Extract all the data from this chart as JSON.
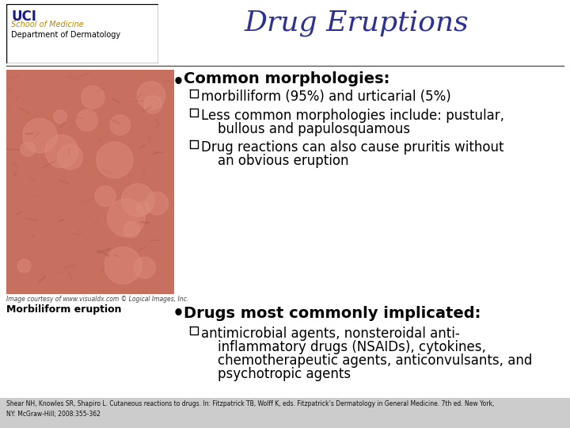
{
  "title": "Drug Eruptions",
  "title_color": "#2E3192",
  "title_fontsize": 26,
  "bg_color": "#ffffff",
  "header_line_color": "#555555",
  "bullet1_header": "Common morphologies:",
  "bullet1_item1": "morbilliform (95%) and urticarial (5%)",
  "bullet1_item2a": "Less common morphologies include: pustular,",
  "bullet1_item2b": "    bullous and papulosquamous",
  "bullet1_item3a": "Drug reactions can also cause pruritis without",
  "bullet1_item3b": "    an obvious eruption",
  "bullet2_header": "Drugs most commonly implicated:",
  "bullet2_item1a": "antimicrobial agents, nonsteroidal anti-",
  "bullet2_item1b": "    inflammatory drugs (NSAIDs), cytokines,",
  "bullet2_item1c": "    chemotherapeutic agents, anticonvulsants, and",
  "bullet2_item1d": "    psychotropic agents",
  "image_caption1": "Image courtesy of www.visualdx.com © Logical Images, Inc.",
  "image_caption2": "Morbiliform eruption",
  "ref_line1": "Shear NH, Knowles SR, Shapiro L. Cutaneous reactions to drugs. In: Fitzpatrick TB, Wolff K, eds. Fitzpatrick’s Dermatology in General Medicine. 7th ed. New York,",
  "ref_line2": "NY: McGraw-Hill; 2008:355-362",
  "uci_text_color": "#1a1a8c",
  "uci_school_color": "#b8860b",
  "footer_bg": "#cccccc",
  "content_text_color": "#000000",
  "img_color": "#c87060",
  "img_color2": "#b06050"
}
